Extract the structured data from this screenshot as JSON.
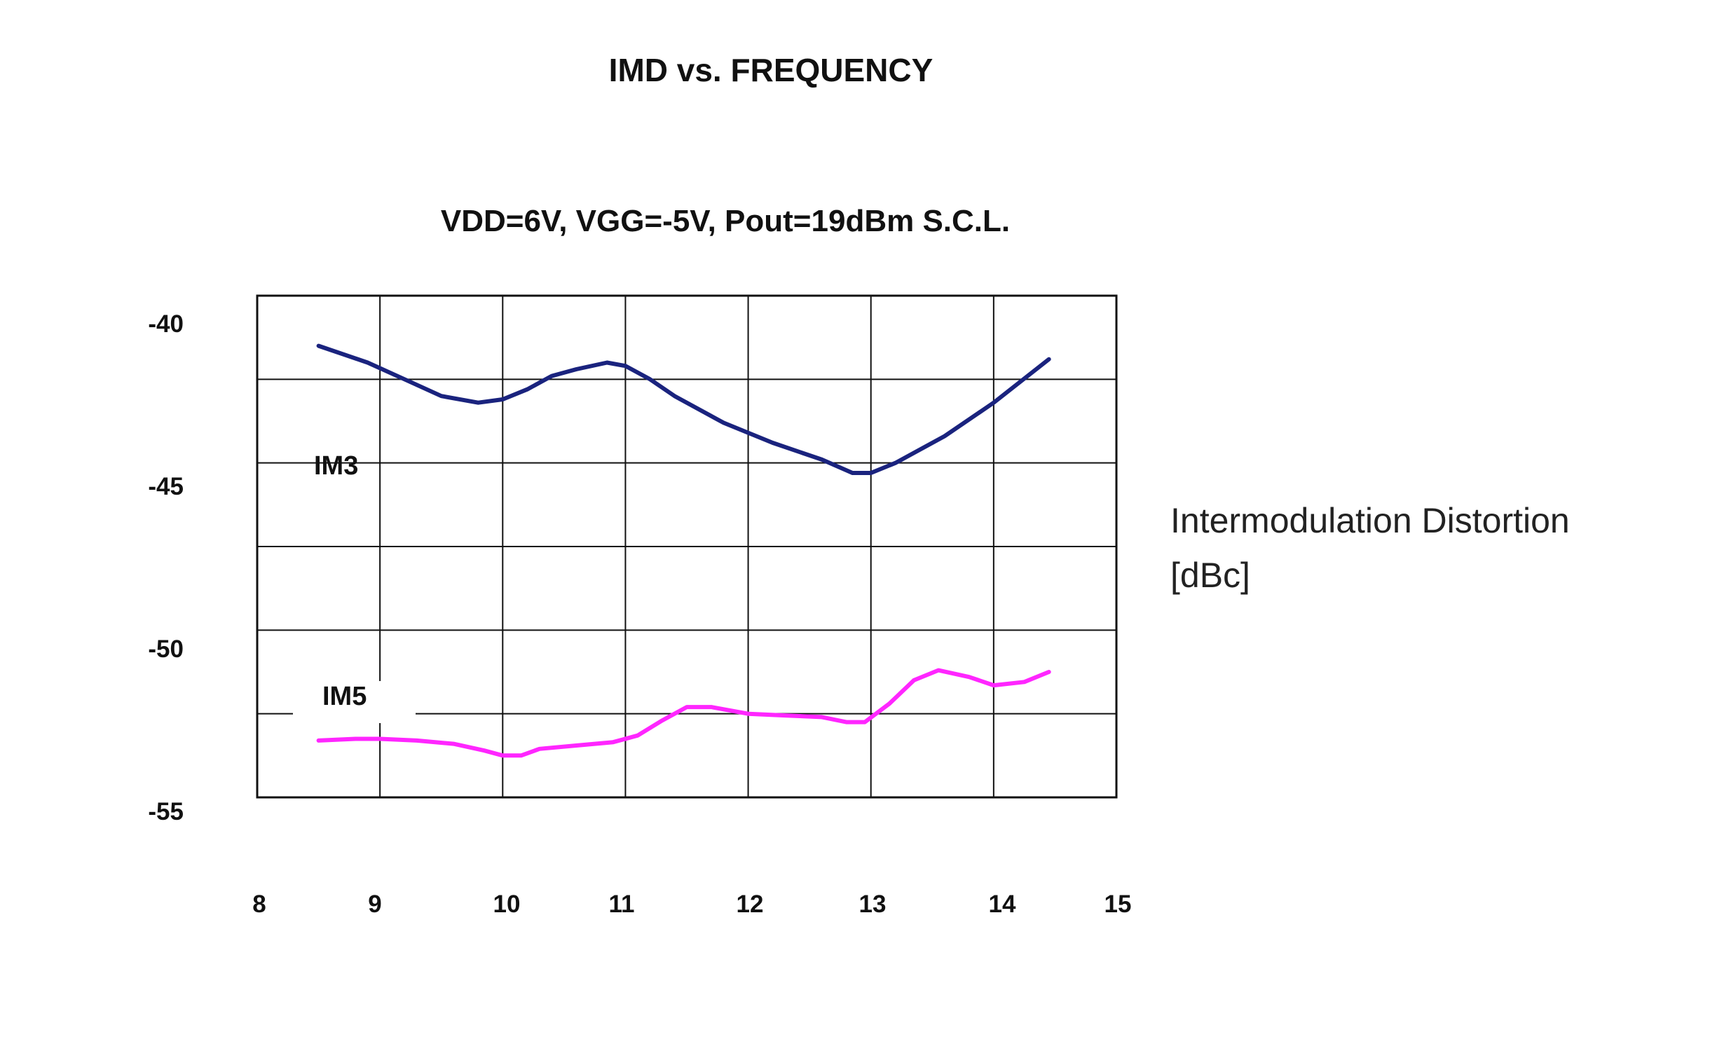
{
  "chart_data": {
    "type": "line",
    "title": "IMD vs. FREQUENCY",
    "subtitle": "VDD=6V, VGG=-5V, Pout=19dBm  S.C.L.",
    "ylabel_line1": "Intermodulation  Distortion",
    "ylabel_line2": "[dBc]",
    "xlim": [
      8,
      15
    ],
    "ylim": [
      -55,
      -40
    ],
    "x_ticks": [
      "8",
      "9",
      "10",
      "11",
      "12",
      "13",
      "14",
      "15"
    ],
    "y_ticks": [
      "-40",
      "-45",
      "-50",
      "-55"
    ],
    "grid": true,
    "series": [
      {
        "name": "IM3",
        "color": "#1a237e",
        "x": [
          8.5,
          8.9,
          9.2,
          9.5,
          9.8,
          10.0,
          10.2,
          10.4,
          10.6,
          10.85,
          11.0,
          11.2,
          11.4,
          11.8,
          12.2,
          12.6,
          12.85,
          13.0,
          13.2,
          13.6,
          14.0,
          14.45
        ],
        "y": [
          -41.5,
          -42.0,
          -42.5,
          -43.0,
          -43.2,
          -43.1,
          -42.8,
          -42.4,
          -42.2,
          -42.0,
          -42.1,
          -42.5,
          -43.0,
          -43.8,
          -44.4,
          -44.9,
          -45.3,
          -45.3,
          -45.0,
          -44.2,
          -43.2,
          -41.9
        ]
      },
      {
        "name": "IM5",
        "color": "#ff26ff",
        "x": [
          8.5,
          8.8,
          9.0,
          9.3,
          9.6,
          9.85,
          10.0,
          10.15,
          10.3,
          10.6,
          10.9,
          11.1,
          11.3,
          11.5,
          11.7,
          12.0,
          12.3,
          12.6,
          12.8,
          12.95,
          13.15,
          13.35,
          13.55,
          13.8,
          14.0,
          14.25,
          14.45
        ],
        "y": [
          -53.3,
          -53.25,
          -53.25,
          -53.3,
          -53.4,
          -53.6,
          -53.75,
          -53.75,
          -53.55,
          -53.45,
          -53.35,
          -53.15,
          -52.7,
          -52.3,
          -52.3,
          -52.5,
          -52.55,
          -52.6,
          -52.75,
          -52.75,
          -52.2,
          -51.5,
          -51.2,
          -51.4,
          -51.65,
          -51.55,
          -51.25
        ]
      }
    ]
  }
}
